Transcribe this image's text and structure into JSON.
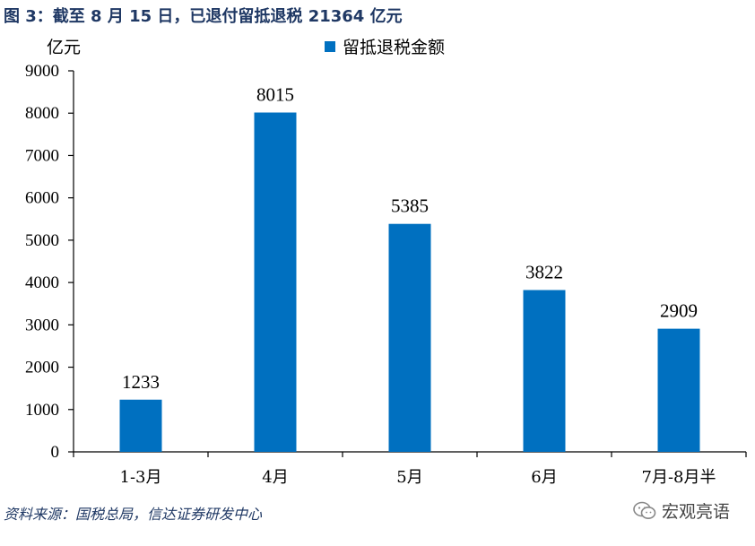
{
  "figure": {
    "title": "图 3：截至 8 月 15 日，已退付留抵退税 21364 亿元",
    "unit": "亿元",
    "source": "资料来源：国税总局，信达证券研发中心",
    "watermark": "宏观亮语"
  },
  "chart_data": {
    "type": "bar",
    "categories": [
      "1-3月",
      "4月",
      "5月",
      "6月",
      "7月-8月半"
    ],
    "series": [
      {
        "name": "留抵退税金额",
        "values": [
          1233,
          8015,
          5385,
          3822,
          2909
        ],
        "color": "#0070c0"
      }
    ],
    "ylabel": "亿元",
    "ylim": [
      0,
      9000
    ],
    "yticks": [
      0,
      1000,
      2000,
      3000,
      4000,
      5000,
      6000,
      7000,
      8000,
      9000
    ],
    "grid": false,
    "legend_position": "top-center",
    "data_labels": true
  }
}
